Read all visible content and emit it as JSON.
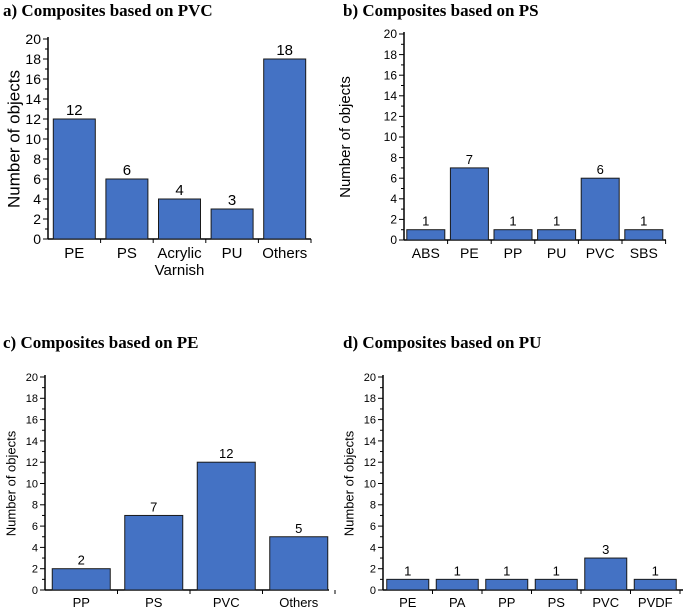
{
  "chart_data": [
    {
      "type": "bar",
      "title": "a) Composites based on PVC",
      "xlabel": "",
      "ylabel": "Number of objects",
      "ylim": [
        0,
        20
      ],
      "ytick_step": 2,
      "categories": [
        "PE",
        "PS",
        "Acrylic Varnish",
        "PU",
        "Others"
      ],
      "values": [
        12,
        6,
        4,
        3,
        18
      ],
      "bar_color": "#4472C4"
    },
    {
      "type": "bar",
      "title": "b) Composites based on PS",
      "xlabel": "",
      "ylabel": "Number of objects",
      "ylim": [
        0,
        20
      ],
      "ytick_step": 2,
      "categories": [
        "ABS",
        "PE",
        "PP",
        "PU",
        "PVC",
        "SBS"
      ],
      "values": [
        1,
        7,
        1,
        1,
        6,
        1
      ],
      "bar_color": "#4472C4"
    },
    {
      "type": "bar",
      "title": "c) Composites based on PE",
      "xlabel": "",
      "ylabel": "Number of objects",
      "ylim": [
        0,
        20
      ],
      "ytick_step": 2,
      "categories": [
        "PP",
        "PS",
        "PVC",
        "Others"
      ],
      "values": [
        2,
        7,
        12,
        5
      ],
      "bar_color": "#4472C4"
    },
    {
      "type": "bar",
      "title": "d) Composites based on PU",
      "xlabel": "",
      "ylabel": "Number of objects",
      "ylim": [
        0,
        20
      ],
      "ytick_step": 2,
      "categories": [
        "PE",
        "PA",
        "PP",
        "PS",
        "PVC",
        "PVDF"
      ],
      "values": [
        1,
        1,
        1,
        1,
        3,
        1
      ],
      "bar_color": "#4472C4"
    }
  ]
}
